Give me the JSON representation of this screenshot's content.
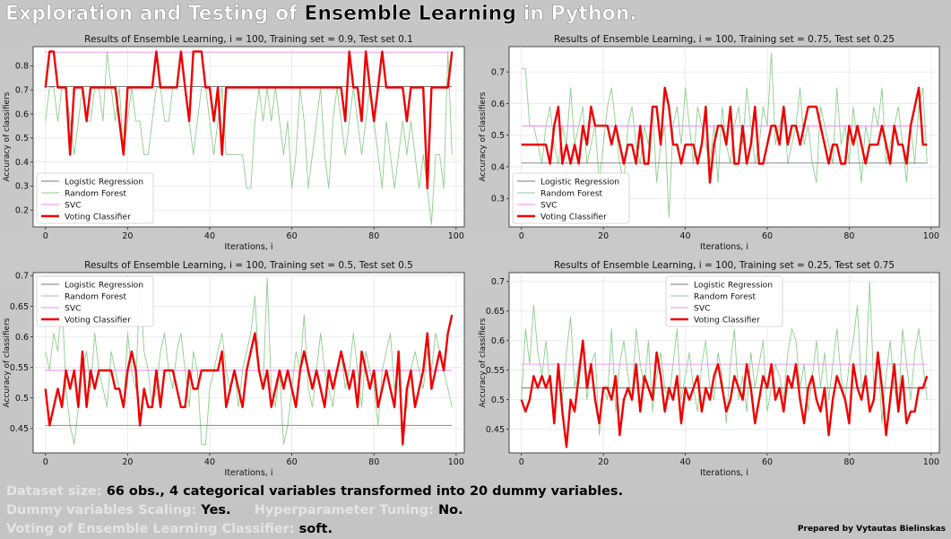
{
  "header": {
    "title_part1": "Exploration and Testing of ",
    "title_part2": "Ensemble Learning",
    "title_part3": " in Python."
  },
  "colors": {
    "logistic_regression": "#7a7a7a",
    "random_forest": "#8fcc8f",
    "svc": "#f28af2",
    "voting_classifier": "#ee0000"
  },
  "chart_data": [
    {
      "type": "line",
      "title": "Results of Ensemble Learning, i = 100, Training set = 0.9, Test set 0.1",
      "xlabel": "Iterations, i",
      "ylabel": "Accuracy of classifiers",
      "xlim": [
        -3,
        102
      ],
      "ylim": [
        0.13,
        0.88
      ],
      "xticks": [
        0,
        20,
        40,
        60,
        80,
        100
      ],
      "yticks": [
        0.2,
        0.3,
        0.4,
        0.5,
        0.6,
        0.7,
        0.8
      ],
      "grid": true,
      "legend": "lower-left",
      "series": [
        {
          "name": "Logistic Regression",
          "values": [
            0.714
          ]
        },
        {
          "name": "Random Forest",
          "values": [
            0.57,
            0.71,
            0.71,
            0.57,
            0.71,
            0.71,
            0.57,
            0.43,
            0.57,
            0.71,
            0.57,
            0.57,
            0.71,
            0.71,
            0.57,
            0.86,
            0.71,
            0.57,
            0.71,
            0.43,
            0.57,
            0.71,
            0.57,
            0.57,
            0.43,
            0.43,
            0.57,
            0.71,
            0.71,
            0.57,
            0.57,
            0.71,
            0.71,
            0.86,
            0.71,
            0.57,
            0.43,
            0.57,
            0.71,
            0.71,
            0.57,
            0.43,
            0.57,
            0.71,
            0.43,
            0.43,
            0.43,
            0.43,
            0.43,
            0.29,
            0.29,
            0.57,
            0.71,
            0.57,
            0.71,
            0.57,
            0.71,
            0.57,
            0.43,
            0.57,
            0.29,
            0.43,
            0.71,
            0.57,
            0.29,
            0.43,
            0.57,
            0.71,
            0.43,
            0.29,
            0.57,
            0.71,
            0.57,
            0.43,
            0.57,
            0.71,
            0.57,
            0.43,
            0.57,
            0.71,
            0.57,
            0.43,
            0.29,
            0.57,
            0.43,
            0.29,
            0.43,
            0.57,
            0.43,
            0.57,
            0.43,
            0.29,
            0.43,
            0.29,
            0.14,
            0.43,
            0.43,
            0.29,
            0.86,
            0.43
          ]
        },
        {
          "name": "SVC",
          "values": [
            0.857
          ]
        },
        {
          "name": "Voting Classifier",
          "values": [
            0.71,
            0.86,
            0.86,
            0.71,
            0.71,
            0.71,
            0.43,
            0.71,
            0.71,
            0.71,
            0.57,
            0.71,
            0.71,
            0.71,
            0.71,
            0.71,
            0.71,
            0.71,
            0.57,
            0.43,
            0.71,
            0.71,
            0.71,
            0.71,
            0.71,
            0.71,
            0.71,
            0.86,
            0.71,
            0.71,
            0.71,
            0.71,
            0.71,
            0.86,
            0.71,
            0.57,
            0.86,
            0.86,
            0.86,
            0.71,
            0.71,
            0.57,
            0.71,
            0.43,
            0.71,
            0.71,
            0.71,
            0.71,
            0.71,
            0.71,
            0.71,
            0.71,
            0.71,
            0.71,
            0.71,
            0.71,
            0.71,
            0.71,
            0.71,
            0.71,
            0.71,
            0.71,
            0.71,
            0.71,
            0.71,
            0.71,
            0.71,
            0.71,
            0.71,
            0.71,
            0.71,
            0.71,
            0.71,
            0.57,
            0.86,
            0.71,
            0.71,
            0.57,
            0.86,
            0.71,
            0.57,
            0.71,
            0.86,
            0.71,
            0.71,
            0.71,
            0.71,
            0.71,
            0.57,
            0.71,
            0.71,
            0.71,
            0.71,
            0.29,
            0.71,
            0.71,
            0.71,
            0.71,
            0.71,
            0.86
          ]
        }
      ]
    },
    {
      "type": "line",
      "title": "Results of Ensemble Learning, i = 100, Training set = 0.75, Test set 0.25",
      "xlabel": "Iterations, i",
      "ylabel": "Accuracy of classifiers",
      "xlim": [
        -3,
        102
      ],
      "ylim": [
        0.21,
        0.78
      ],
      "xticks": [
        0,
        20,
        40,
        60,
        80,
        100
      ],
      "yticks": [
        0.3,
        0.4,
        0.5,
        0.6,
        0.7
      ],
      "grid": true,
      "legend": "lower-left",
      "series": [
        {
          "name": "Logistic Regression",
          "values": [
            0.412
          ]
        },
        {
          "name": "Random Forest",
          "values": [
            0.71,
            0.71,
            0.53,
            0.53,
            0.47,
            0.41,
            0.53,
            0.59,
            0.47,
            0.41,
            0.53,
            0.47,
            0.65,
            0.47,
            0.53,
            0.59,
            0.41,
            0.47,
            0.53,
            0.35,
            0.47,
            0.59,
            0.65,
            0.53,
            0.41,
            0.35,
            0.53,
            0.59,
            0.47,
            0.41,
            0.53,
            0.47,
            0.59,
            0.35,
            0.47,
            0.53,
            0.24,
            0.53,
            0.59,
            0.47,
            0.65,
            0.53,
            0.41,
            0.59,
            0.53,
            0.47,
            0.41,
            0.53,
            0.35,
            0.59,
            0.47,
            0.41,
            0.53,
            0.59,
            0.47,
            0.65,
            0.53,
            0.41,
            0.47,
            0.59,
            0.53,
            0.76,
            0.47,
            0.53,
            0.59,
            0.41,
            0.47,
            0.53,
            0.65,
            0.47,
            0.53,
            0.41,
            0.35,
            0.59,
            0.53,
            0.47,
            0.41,
            0.65,
            0.47,
            0.53,
            0.41,
            0.59,
            0.47,
            0.35,
            0.53,
            0.47,
            0.59,
            0.53,
            0.65,
            0.41,
            0.47,
            0.53,
            0.59,
            0.47,
            0.35,
            0.53,
            0.41,
            0.59,
            0.65,
            0.41
          ]
        },
        {
          "name": "SVC",
          "values": [
            0.529
          ]
        },
        {
          "name": "Voting Classifier",
          "values": [
            0.47,
            0.47,
            0.47,
            0.47,
            0.47,
            0.47,
            0.47,
            0.41,
            0.53,
            0.59,
            0.41,
            0.47,
            0.41,
            0.47,
            0.41,
            0.53,
            0.47,
            0.59,
            0.53,
            0.53,
            0.53,
            0.53,
            0.47,
            0.53,
            0.47,
            0.41,
            0.47,
            0.47,
            0.41,
            0.53,
            0.41,
            0.41,
            0.59,
            0.59,
            0.47,
            0.65,
            0.59,
            0.47,
            0.47,
            0.41,
            0.47,
            0.47,
            0.47,
            0.41,
            0.47,
            0.59,
            0.35,
            0.47,
            0.53,
            0.53,
            0.47,
            0.59,
            0.41,
            0.41,
            0.53,
            0.41,
            0.47,
            0.59,
            0.41,
            0.41,
            0.47,
            0.53,
            0.53,
            0.47,
            0.59,
            0.47,
            0.53,
            0.53,
            0.47,
            0.53,
            0.59,
            0.59,
            0.59,
            0.53,
            0.47,
            0.41,
            0.47,
            0.47,
            0.41,
            0.41,
            0.53,
            0.47,
            0.53,
            0.47,
            0.41,
            0.47,
            0.47,
            0.47,
            0.53,
            0.47,
            0.41,
            0.53,
            0.47,
            0.47,
            0.41,
            0.53,
            0.59,
            0.65,
            0.47,
            0.47
          ]
        }
      ]
    },
    {
      "type": "line",
      "title": "Results of Ensemble Learning, i = 100, Training set = 0.5, Test set 0.5",
      "xlabel": "Iterations, i",
      "ylabel": "Accuracy of classifiers",
      "xlim": [
        -3,
        102
      ],
      "ylim": [
        0.41,
        0.705
      ],
      "xticks": [
        0,
        20,
        40,
        60,
        80,
        100
      ],
      "yticks": [
        0.45,
        0.5,
        0.55,
        0.6,
        0.65,
        0.7
      ],
      "grid": true,
      "legend": "upper-left",
      "series": [
        {
          "name": "Logistic Regression",
          "values": [
            0.455
          ]
        },
        {
          "name": "Random Forest",
          "values": [
            0.576,
            0.545,
            0.606,
            0.576,
            0.667,
            0.515,
            0.455,
            0.424,
            0.485,
            0.545,
            0.576,
            0.515,
            0.606,
            0.545,
            0.515,
            0.485,
            0.576,
            0.545,
            0.515,
            0.485,
            0.606,
            0.545,
            0.515,
            0.697,
            0.576,
            0.545,
            0.485,
            0.515,
            0.576,
            0.606,
            0.545,
            0.515,
            0.576,
            0.606,
            0.545,
            0.485,
            0.576,
            0.545,
            0.424,
            0.424,
            0.515,
            0.545,
            0.576,
            0.606,
            0.545,
            0.515,
            0.545,
            0.485,
            0.545,
            0.576,
            0.606,
            0.667,
            0.545,
            0.515,
            0.697,
            0.515,
            0.485,
            0.545,
            0.424,
            0.455,
            0.515,
            0.576,
            0.545,
            0.636,
            0.515,
            0.485,
            0.545,
            0.606,
            0.545,
            0.515,
            0.485,
            0.545,
            0.576,
            0.515,
            0.545,
            0.606,
            0.545,
            0.485,
            0.576,
            0.545,
            0.515,
            0.455,
            0.545,
            0.576,
            0.606,
            0.515,
            0.545,
            0.455,
            0.485,
            0.545,
            0.576,
            0.545,
            0.515,
            0.576,
            0.545,
            0.606,
            0.576,
            0.545,
            0.515,
            0.485
          ]
        },
        {
          "name": "SVC",
          "values": [
            0.545
          ]
        },
        {
          "name": "Voting Classifier",
          "values": [
            0.515,
            0.455,
            0.485,
            0.515,
            0.485,
            0.545,
            0.515,
            0.545,
            0.485,
            0.576,
            0.485,
            0.545,
            0.515,
            0.545,
            0.545,
            0.545,
            0.545,
            0.515,
            0.515,
            0.485,
            0.545,
            0.576,
            0.545,
            0.455,
            0.515,
            0.485,
            0.485,
            0.545,
            0.485,
            0.545,
            0.545,
            0.545,
            0.515,
            0.485,
            0.485,
            0.545,
            0.515,
            0.515,
            0.545,
            0.545,
            0.545,
            0.545,
            0.545,
            0.576,
            0.485,
            0.515,
            0.545,
            0.515,
            0.485,
            0.545,
            0.576,
            0.606,
            0.545,
            0.515,
            0.545,
            0.485,
            0.515,
            0.545,
            0.515,
            0.545,
            0.515,
            0.485,
            0.545,
            0.576,
            0.545,
            0.515,
            0.545,
            0.515,
            0.485,
            0.545,
            0.515,
            0.545,
            0.576,
            0.545,
            0.515,
            0.545,
            0.485,
            0.576,
            0.545,
            0.515,
            0.545,
            0.485,
            0.515,
            0.545,
            0.515,
            0.485,
            0.576,
            0.424,
            0.515,
            0.545,
            0.485,
            0.515,
            0.545,
            0.606,
            0.515,
            0.545,
            0.576,
            0.545,
            0.606,
            0.636
          ]
        }
      ]
    },
    {
      "type": "line",
      "title": "Results of Ensemble Learning, i = 100, Training set = 0.25, Test set 0.75",
      "xlabel": "Iterations, i",
      "ylabel": "Accuracy of classifiers",
      "xlim": [
        -3,
        102
      ],
      "ylim": [
        0.41,
        0.715
      ],
      "xticks": [
        0,
        20,
        40,
        60,
        80,
        100
      ],
      "yticks": [
        0.45,
        0.5,
        0.55,
        0.6,
        0.65,
        0.7
      ],
      "grid": true,
      "legend": "upper-center",
      "series": [
        {
          "name": "Logistic Regression",
          "values": [
            0.52
          ]
        },
        {
          "name": "Random Forest",
          "values": [
            0.5,
            0.62,
            0.56,
            0.66,
            0.58,
            0.54,
            0.6,
            0.52,
            0.46,
            0.56,
            0.5,
            0.58,
            0.64,
            0.52,
            0.56,
            0.6,
            0.5,
            0.56,
            0.58,
            0.44,
            0.52,
            0.5,
            0.62,
            0.48,
            0.56,
            0.6,
            0.54,
            0.5,
            0.62,
            0.56,
            0.52,
            0.6,
            0.48,
            0.54,
            0.58,
            0.52,
            0.5,
            0.56,
            0.62,
            0.5,
            0.54,
            0.58,
            0.52,
            0.48,
            0.56,
            0.6,
            0.52,
            0.5,
            0.58,
            0.54,
            0.46,
            0.56,
            0.62,
            0.5,
            0.54,
            0.48,
            0.58,
            0.52,
            0.56,
            0.6,
            0.48,
            0.52,
            0.56,
            0.54,
            0.5,
            0.58,
            0.62,
            0.6,
            0.52,
            0.56,
            0.48,
            0.54,
            0.6,
            0.52,
            0.58,
            0.5,
            0.56,
            0.62,
            0.54,
            0.5,
            0.56,
            0.6,
            0.66,
            0.52,
            0.54,
            0.7,
            0.52,
            0.58,
            0.46,
            0.54,
            0.6,
            0.52,
            0.48,
            0.62,
            0.56,
            0.5,
            0.58,
            0.62,
            0.56,
            0.5
          ]
        },
        {
          "name": "SVC",
          "values": [
            0.56
          ]
        },
        {
          "name": "Voting Classifier",
          "values": [
            0.5,
            0.48,
            0.5,
            0.54,
            0.52,
            0.54,
            0.52,
            0.54,
            0.46,
            0.56,
            0.48,
            0.42,
            0.5,
            0.48,
            0.54,
            0.6,
            0.52,
            0.56,
            0.5,
            0.46,
            0.52,
            0.52,
            0.5,
            0.54,
            0.44,
            0.5,
            0.52,
            0.5,
            0.56,
            0.48,
            0.54,
            0.52,
            0.5,
            0.58,
            0.54,
            0.48,
            0.52,
            0.5,
            0.54,
            0.46,
            0.52,
            0.5,
            0.52,
            0.54,
            0.48,
            0.52,
            0.5,
            0.54,
            0.56,
            0.52,
            0.48,
            0.5,
            0.54,
            0.52,
            0.5,
            0.56,
            0.52,
            0.46,
            0.5,
            0.54,
            0.52,
            0.56,
            0.5,
            0.52,
            0.48,
            0.54,
            0.52,
            0.56,
            0.5,
            0.46,
            0.52,
            0.54,
            0.5,
            0.48,
            0.52,
            0.44,
            0.5,
            0.54,
            0.52,
            0.5,
            0.46,
            0.56,
            0.52,
            0.5,
            0.54,
            0.48,
            0.5,
            0.58,
            0.52,
            0.44,
            0.5,
            0.56,
            0.48,
            0.54,
            0.46,
            0.48,
            0.48,
            0.52,
            0.52,
            0.54
          ]
        }
      ]
    }
  ],
  "footer": {
    "line1_label": "Dataset size: ",
    "line1_value": "66 obs., 4 categorical variables transformed into 20 dummy variables.",
    "scaling_label": "Dummy variables Scaling: ",
    "scaling_value": "Yes.",
    "tuning_label": "Hyperparameter Tuning: ",
    "tuning_value": "No.",
    "voting_label": "Voting of Ensemble Learning Classifier: ",
    "voting_value": "soft.",
    "credit": "Prepared by Vytautas Bielinskas"
  }
}
